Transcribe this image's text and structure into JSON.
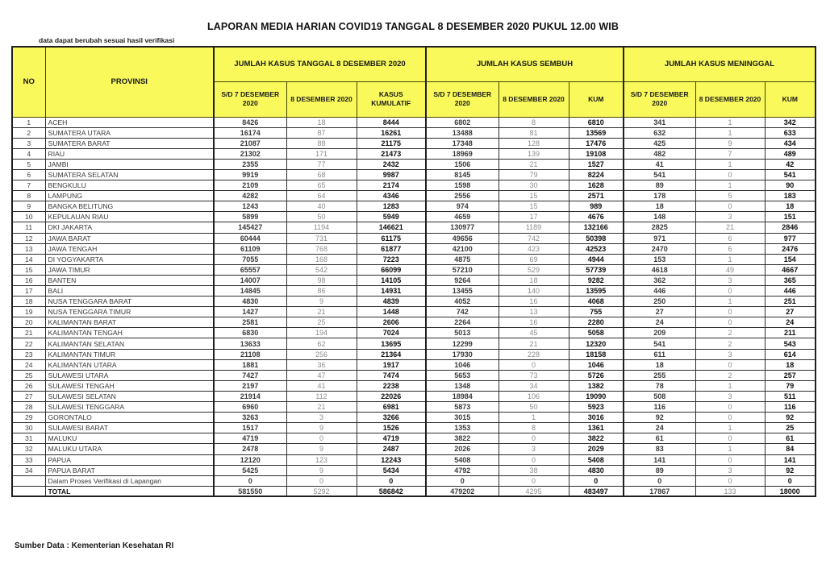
{
  "title": "LAPORAN MEDIA HARIAN COVID19 TANGGAL 8 DESEMBER 2020 PUKUL 12.00 WIB",
  "note": "data dapat berubah sesuai hasil verifikasi",
  "source": "Sumber Data : Kementerian Kesehatan RI",
  "colors": {
    "header_yellow": "#f9f95b",
    "border_dark": "#1f1f1f",
    "new_value_gray": "#8c8c8c"
  },
  "table": {
    "header": {
      "no": "NO",
      "provinsi": "PROVINSI",
      "groups": [
        {
          "label": "JUMLAH KASUS TANGGAL 8 DESEMBER 2020",
          "cols": [
            "S/D 7 DESEMBER 2020",
            "8 DESEMBER 2020",
            "KASUS KUMULATIF"
          ]
        },
        {
          "label": "JUMLAH KASUS SEMBUH",
          "cols": [
            "S/D 7 DESEMBER 2020",
            "8 DESEMBER 2020",
            "KUM"
          ]
        },
        {
          "label": "JUMLAH KASUS MENINGGAL",
          "cols": [
            "S/D 7 DESEMBER 2020",
            "8 DESEMBER 2020",
            "KUM"
          ]
        }
      ]
    },
    "rows": [
      {
        "no": "1",
        "provinsi": "ACEH",
        "values": [
          8426,
          18,
          8444,
          6802,
          8,
          6810,
          341,
          1,
          342
        ]
      },
      {
        "no": "2",
        "provinsi": "SUMATERA UTARA",
        "values": [
          16174,
          87,
          16261,
          13488,
          81,
          13569,
          632,
          1,
          633
        ]
      },
      {
        "no": "3",
        "provinsi": "SUMATERA BARAT",
        "values": [
          21087,
          88,
          21175,
          17348,
          128,
          17476,
          425,
          9,
          434
        ]
      },
      {
        "no": "4",
        "provinsi": "RIAU",
        "values": [
          21302,
          171,
          21473,
          18969,
          139,
          19108,
          482,
          7,
          489
        ]
      },
      {
        "no": "5",
        "provinsi": "JAMBI",
        "values": [
          2355,
          77,
          2432,
          1506,
          21,
          1527,
          41,
          1,
          42
        ]
      },
      {
        "no": "6",
        "provinsi": "SUMATERA SELATAN",
        "values": [
          9919,
          68,
          9987,
          8145,
          79,
          8224,
          541,
          0,
          541
        ]
      },
      {
        "no": "7",
        "provinsi": "BENGKULU",
        "values": [
          2109,
          65,
          2174,
          1598,
          30,
          1628,
          89,
          1,
          90
        ]
      },
      {
        "no": "8",
        "provinsi": "LAMPUNG",
        "values": [
          4282,
          64,
          4346,
          2556,
          15,
          2571,
          178,
          5,
          183
        ]
      },
      {
        "no": "9",
        "provinsi": "BANGKA BELITUNG",
        "values": [
          1243,
          40,
          1283,
          974,
          15,
          989,
          18,
          0,
          18
        ]
      },
      {
        "no": "10",
        "provinsi": "KEPULAUAN RIAU",
        "values": [
          5899,
          50,
          5949,
          4659,
          17,
          4676,
          148,
          3,
          151
        ]
      },
      {
        "no": "11",
        "provinsi": "DKI JAKARTA",
        "values": [
          145427,
          1194,
          146621,
          130977,
          1189,
          132166,
          2825,
          21,
          2846
        ]
      },
      {
        "no": "12",
        "provinsi": "JAWA BARAT",
        "values": [
          60444,
          731,
          61175,
          49656,
          742,
          50398,
          971,
          6,
          977
        ]
      },
      {
        "no": "13",
        "provinsi": "JAWA TENGAH",
        "values": [
          61109,
          768,
          61877,
          42100,
          423,
          42523,
          2470,
          6,
          2476
        ]
      },
      {
        "no": "14",
        "provinsi": "DI YOGYAKARTA",
        "values": [
          7055,
          168,
          7223,
          4875,
          69,
          4944,
          153,
          1,
          154
        ]
      },
      {
        "no": "15",
        "provinsi": "JAWA TIMUR",
        "values": [
          65557,
          542,
          66099,
          57210,
          529,
          57739,
          4618,
          49,
          4667
        ]
      },
      {
        "no": "16",
        "provinsi": "BANTEN",
        "values": [
          14007,
          98,
          14105,
          9264,
          18,
          9282,
          362,
          3,
          365
        ]
      },
      {
        "no": "17",
        "provinsi": "BALI",
        "values": [
          14845,
          86,
          14931,
          13455,
          140,
          13595,
          446,
          0,
          446
        ]
      },
      {
        "no": "18",
        "provinsi": "NUSA TENGGARA BARAT",
        "values": [
          4830,
          9,
          4839,
          4052,
          16,
          4068,
          250,
          1,
          251
        ]
      },
      {
        "no": "19",
        "provinsi": "NUSA TENGGARA TIMUR",
        "values": [
          1427,
          21,
          1448,
          742,
          13,
          755,
          27,
          0,
          27
        ]
      },
      {
        "no": "20",
        "provinsi": "KALIMANTAN BARAT",
        "values": [
          2581,
          25,
          2606,
          2264,
          16,
          2280,
          24,
          0,
          24
        ]
      },
      {
        "no": "21",
        "provinsi": "KALIMANTAN TENGAH",
        "values": [
          6830,
          194,
          7024,
          5013,
          45,
          5058,
          209,
          2,
          211
        ]
      },
      {
        "no": "22",
        "provinsi": "KALIMANTAN SELATAN",
        "values": [
          13633,
          62,
          13695,
          12299,
          21,
          12320,
          541,
          2,
          543
        ]
      },
      {
        "no": "23",
        "provinsi": "KALIMANTAN TIMUR",
        "values": [
          21108,
          256,
          21364,
          17930,
          228,
          18158,
          611,
          3,
          614
        ]
      },
      {
        "no": "24",
        "provinsi": "KALIMANTAN UTARA",
        "values": [
          1881,
          36,
          1917,
          1046,
          0,
          1046,
          18,
          0,
          18
        ]
      },
      {
        "no": "25",
        "provinsi": "SULAWESI UTARA",
        "values": [
          7427,
          47,
          7474,
          5653,
          73,
          5726,
          255,
          2,
          257
        ]
      },
      {
        "no": "26",
        "provinsi": "SULAWESI TENGAH",
        "values": [
          2197,
          41,
          2238,
          1348,
          34,
          1382,
          78,
          1,
          79
        ]
      },
      {
        "no": "27",
        "provinsi": "SULAWESI SELATAN",
        "values": [
          21914,
          112,
          22026,
          18984,
          106,
          19090,
          508,
          3,
          511
        ]
      },
      {
        "no": "28",
        "provinsi": "SULAWESI TENGGARA",
        "values": [
          6960,
          21,
          6981,
          5873,
          50,
          5923,
          116,
          0,
          116
        ]
      },
      {
        "no": "29",
        "provinsi": "GORONTALO",
        "values": [
          3263,
          3,
          3266,
          3015,
          1,
          3016,
          92,
          0,
          92
        ]
      },
      {
        "no": "30",
        "provinsi": "SULAWESI BARAT",
        "values": [
          1517,
          9,
          1526,
          1353,
          8,
          1361,
          24,
          1,
          25
        ]
      },
      {
        "no": "31",
        "provinsi": "MALUKU",
        "values": [
          4719,
          0,
          4719,
          3822,
          0,
          3822,
          61,
          0,
          61
        ]
      },
      {
        "no": "32",
        "provinsi": "MALUKU UTARA",
        "values": [
          2478,
          9,
          2487,
          2026,
          3,
          2029,
          83,
          1,
          84
        ]
      },
      {
        "no": "33",
        "provinsi": "PAPUA",
        "values": [
          12120,
          123,
          12243,
          5408,
          0,
          5408,
          141,
          0,
          141
        ]
      },
      {
        "no": "34",
        "provinsi": "PAPUA BARAT",
        "values": [
          5425,
          9,
          5434,
          4792,
          38,
          4830,
          89,
          3,
          92
        ]
      }
    ],
    "verification_row": {
      "no": "",
      "provinsi": "Dalam Proses Verifikasi di Lapangan",
      "values": [
        0,
        0,
        0,
        0,
        0,
        0,
        0,
        0,
        0
      ]
    },
    "total_row": {
      "no": "",
      "provinsi": "TOTAL",
      "values": [
        581550,
        5292,
        586842,
        479202,
        4295,
        483497,
        17867,
        133,
        18000
      ]
    }
  }
}
